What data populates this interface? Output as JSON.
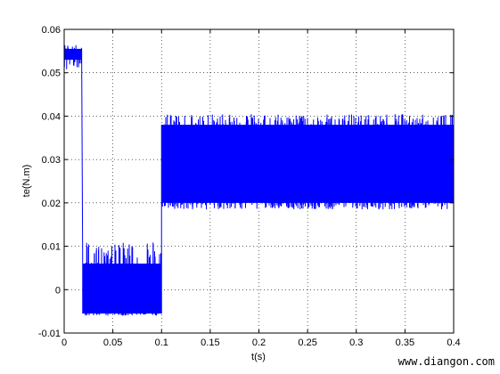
{
  "chart_data": {
    "type": "line",
    "title": "",
    "xlabel": "t(s)",
    "ylabel": "te(N.m)",
    "xlim": [
      0,
      0.4
    ],
    "ylim": [
      -0.01,
      0.06
    ],
    "xticks": [
      0,
      0.05,
      0.1,
      0.15,
      0.2,
      0.25,
      0.3,
      0.35,
      0.4
    ],
    "xtick_labels": [
      "0",
      "0.05",
      "0.1",
      "0.15",
      "0.2",
      "0.25",
      "0.3",
      "0.35",
      "0.4"
    ],
    "yticks": [
      -0.01,
      0,
      0.01,
      0.02,
      0.03,
      0.04,
      0.05,
      0.06
    ],
    "ytick_labels": [
      "-0.01",
      "0",
      "0.01",
      "0.02",
      "0.03",
      "0.04",
      "0.05",
      "0.06"
    ],
    "grid": true,
    "series": [
      {
        "color": "#0000ff",
        "segments": [
          {
            "x_start": 0,
            "x_end": 0.018,
            "low": 0.053,
            "high": 0.0555,
            "peak_low": 0.0505,
            "peak_high": 0.0565
          },
          {
            "x_start": 0.019,
            "x_end": 0.1,
            "low": -0.0055,
            "high": 0.006,
            "peak_low": -0.006,
            "peak_high": 0.011
          },
          {
            "x_start": 0.1,
            "x_end": 0.4,
            "low": 0.02,
            "high": 0.038,
            "peak_low": 0.0185,
            "peak_high": 0.0405
          }
        ]
      }
    ]
  },
  "watermark": "www.diangon.com"
}
